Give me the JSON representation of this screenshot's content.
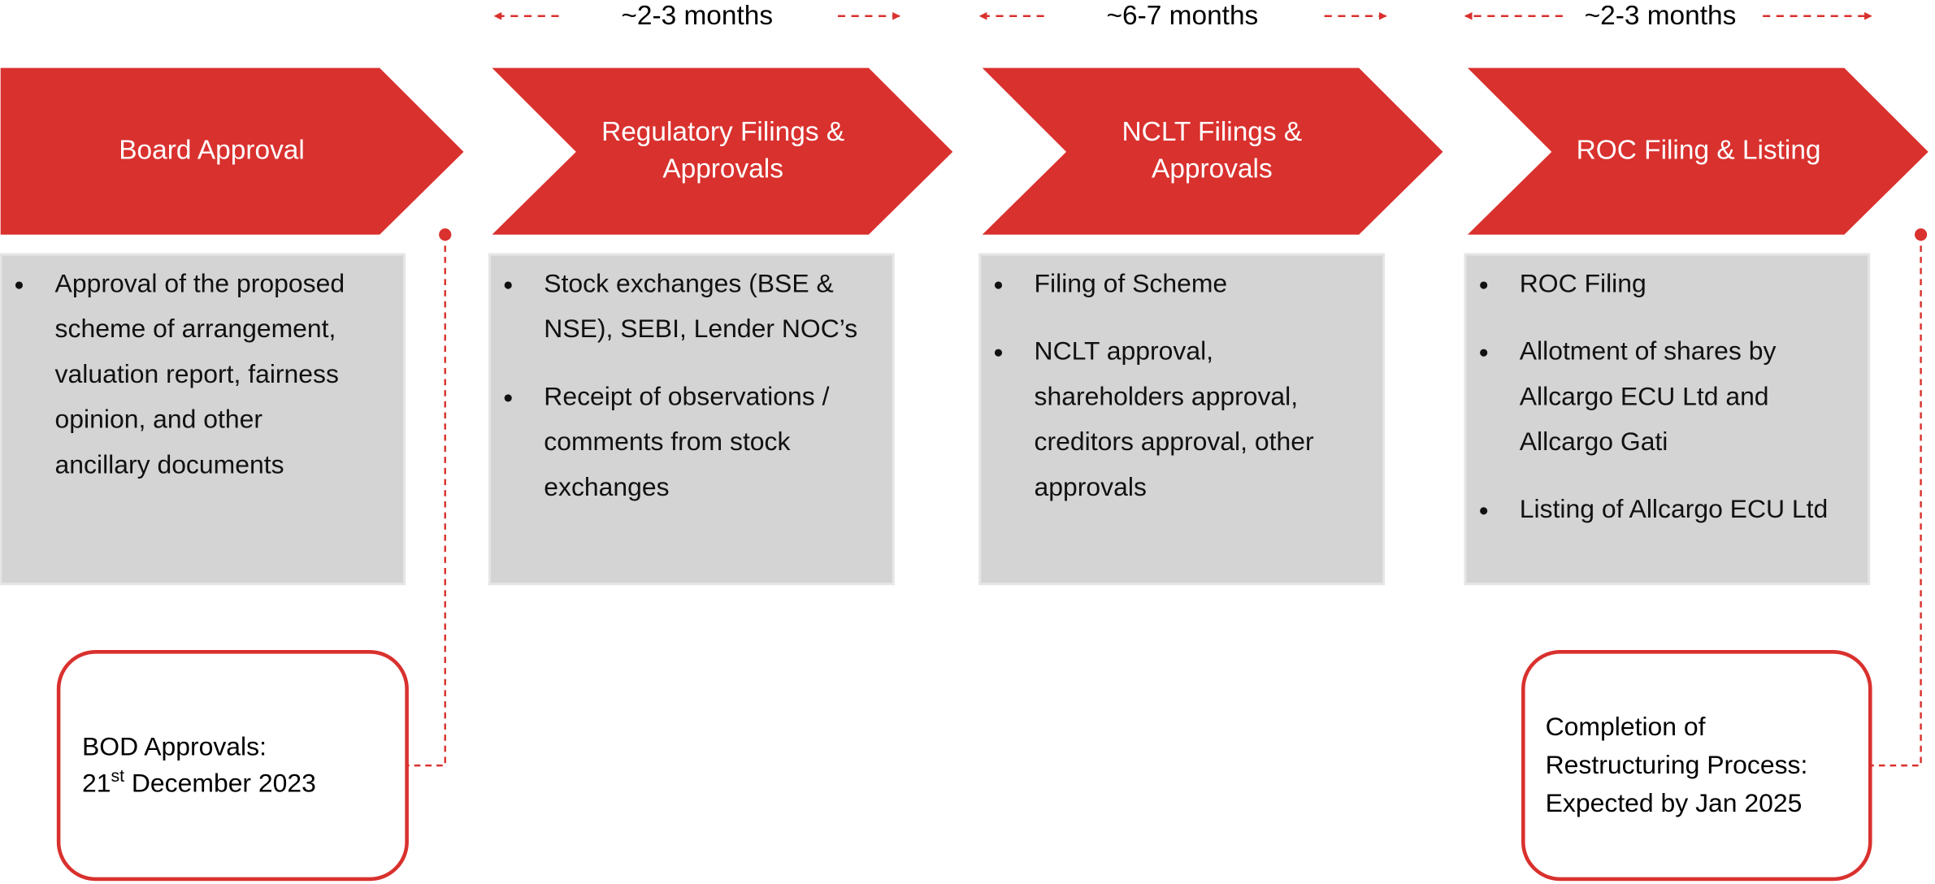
{
  "durations": [
    "~2-3 months",
    "~6-7 months",
    "~2-3 months"
  ],
  "steps": [
    {
      "title": [
        "Board Approval"
      ],
      "bullets": [
        [
          "Approval of the proposed",
          "scheme of arrangement,",
          "valuation report, fairness",
          "opinion, and other",
          "ancillary documents"
        ]
      ]
    },
    {
      "title": [
        "Regulatory Filings &",
        "Approvals"
      ],
      "bullets": [
        [
          "Stock exchanges (BSE &",
          "NSE), SEBI, Lender NOC’s"
        ],
        [
          "Receipt of observations /",
          "comments from stock",
          "exchanges"
        ]
      ]
    },
    {
      "title": [
        "NCLT Filings &",
        "Approvals"
      ],
      "bullets": [
        [
          "Filing of Scheme"
        ],
        [
          "NCLT approval,",
          "shareholders approval,",
          "creditors approval, other",
          "approvals"
        ]
      ]
    },
    {
      "title": [
        "ROC Filing & Listing"
      ],
      "bullets": [
        [
          "ROC Filing"
        ],
        [
          "Allotment of shares by",
          "Allcargo ECU Ltd and",
          "Allcargo Gati"
        ],
        [
          "Listing of Allcargo ECU Ltd"
        ]
      ]
    }
  ],
  "milestones": {
    "start": {
      "line1": "BOD Approvals:",
      "day": "21",
      "ordinal": "st",
      "rest": " December 2023"
    },
    "end": [
      "Completion of",
      "Restructuring Process:",
      "Expected by Jan 2025"
    ]
  }
}
